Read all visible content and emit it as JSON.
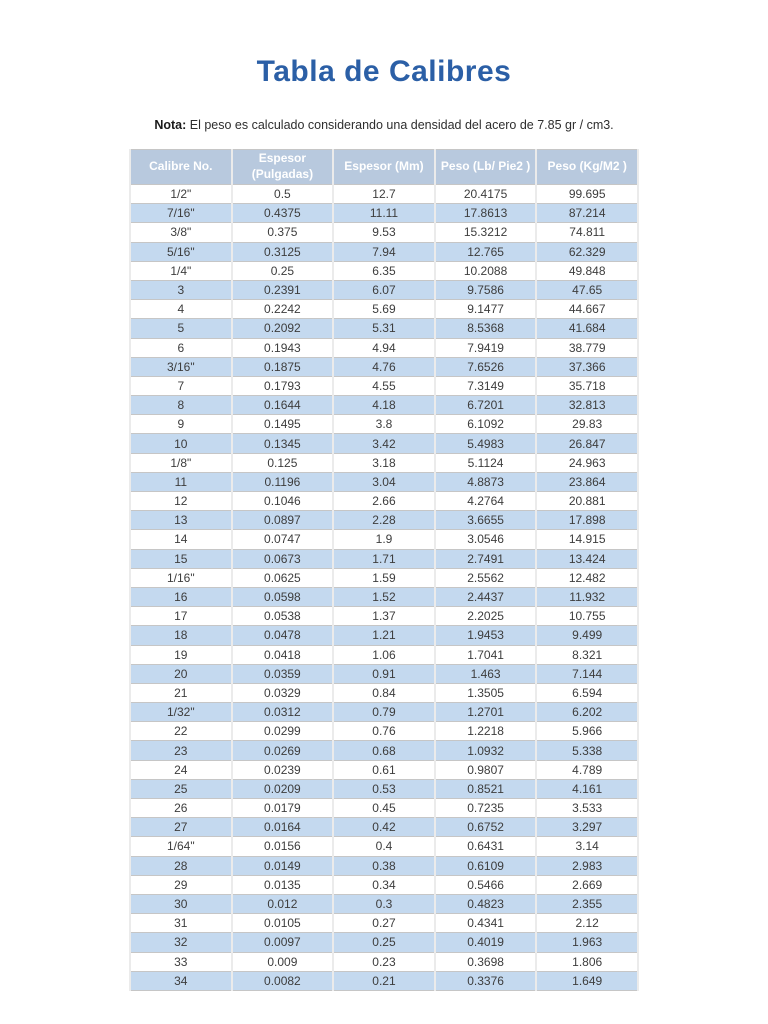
{
  "page": {
    "title": "Tabla de Calibres",
    "note": {
      "label": "Nota:",
      "text": "El peso es calculado considerando una densidad del acero de 7.85 gr / cm3."
    }
  },
  "colors": {
    "title": "#2b5fa6",
    "header_bg": "#b8c9de",
    "header_text": "#ffffff",
    "stripe_bg": "#c4d9ef",
    "body_text": "#3d3d3d"
  },
  "table": {
    "columns": [
      "Calibre No.",
      "Espesor (Pulgadas)",
      "Espesor (Mm)",
      "Peso (Lb/ Pie2 )",
      "Peso (Kg/M2 )"
    ],
    "column_keys": [
      "cell-calibre-no",
      "cell-espesor-pulgadas",
      "cell-espesor-mm",
      "cell-peso-lb-pie2",
      "cell-peso-kg-m2"
    ],
    "rows": [
      [
        "1/2\"",
        "0.5",
        "12.7",
        "20.4175",
        "99.695"
      ],
      [
        "7/16\"",
        "0.4375",
        "11.11",
        "17.8613",
        "87.214"
      ],
      [
        "3/8\"",
        "0.375",
        "9.53",
        "15.3212",
        "74.811"
      ],
      [
        "5/16\"",
        "0.3125",
        "7.94",
        "12.765",
        "62.329"
      ],
      [
        "1/4\"",
        "0.25",
        "6.35",
        "10.2088",
        "49.848"
      ],
      [
        "3",
        "0.2391",
        "6.07",
        "9.7586",
        "47.65"
      ],
      [
        "4",
        "0.2242",
        "5.69",
        "9.1477",
        "44.667"
      ],
      [
        "5",
        "0.2092",
        "5.31",
        "8.5368",
        "41.684"
      ],
      [
        "6",
        "0.1943",
        "4.94",
        "7.9419",
        "38.779"
      ],
      [
        "3/16\"",
        "0.1875",
        "4.76",
        "7.6526",
        "37.366"
      ],
      [
        "7",
        "0.1793",
        "4.55",
        "7.3149",
        "35.718"
      ],
      [
        "8",
        "0.1644",
        "4.18",
        "6.7201",
        "32.813"
      ],
      [
        "9",
        "0.1495",
        "3.8",
        "6.1092",
        "29.83"
      ],
      [
        "10",
        "0.1345",
        "3.42",
        "5.4983",
        "26.847"
      ],
      [
        "1/8\"",
        "0.125",
        "3.18",
        "5.1124",
        "24.963"
      ],
      [
        "11",
        "0.1196",
        "3.04",
        "4.8873",
        "23.864"
      ],
      [
        "12",
        "0.1046",
        "2.66",
        "4.2764",
        "20.881"
      ],
      [
        "13",
        "0.0897",
        "2.28",
        "3.6655",
        "17.898"
      ],
      [
        "14",
        "0.0747",
        "1.9",
        "3.0546",
        "14.915"
      ],
      [
        "15",
        "0.0673",
        "1.71",
        "2.7491",
        "13.424"
      ],
      [
        "1/16\"",
        "0.0625",
        "1.59",
        "2.5562",
        "12.482"
      ],
      [
        "16",
        "0.0598",
        "1.52",
        "2.4437",
        "11.932"
      ],
      [
        "17",
        "0.0538",
        "1.37",
        "2.2025",
        "10.755"
      ],
      [
        "18",
        "0.0478",
        "1.21",
        "1.9453",
        "9.499"
      ],
      [
        "19",
        "0.0418",
        "1.06",
        "1.7041",
        "8.321"
      ],
      [
        "20",
        "0.0359",
        "0.91",
        "1.463",
        "7.144"
      ],
      [
        "21",
        "0.0329",
        "0.84",
        "1.3505",
        "6.594"
      ],
      [
        "1/32\"",
        "0.0312",
        "0.79",
        "1.2701",
        "6.202"
      ],
      [
        "22",
        "0.0299",
        "0.76",
        "1.2218",
        "5.966"
      ],
      [
        "23",
        "0.0269",
        "0.68",
        "1.0932",
        "5.338"
      ],
      [
        "24",
        "0.0239",
        "0.61",
        "0.9807",
        "4.789"
      ],
      [
        "25",
        "0.0209",
        "0.53",
        "0.8521",
        "4.161"
      ],
      [
        "26",
        "0.0179",
        "0.45",
        "0.7235",
        "3.533"
      ],
      [
        "27",
        "0.0164",
        "0.42",
        "0.6752",
        "3.297"
      ],
      [
        "1/64\"",
        "0.0156",
        "0.4",
        "0.6431",
        "3.14"
      ],
      [
        "28",
        "0.0149",
        "0.38",
        "0.6109",
        "2.983"
      ],
      [
        "29",
        "0.0135",
        "0.34",
        "0.5466",
        "2.669"
      ],
      [
        "30",
        "0.012",
        "0.3",
        "0.4823",
        "2.355"
      ],
      [
        "31",
        "0.0105",
        "0.27",
        "0.4341",
        "2.12"
      ],
      [
        "32",
        "0.0097",
        "0.25",
        "0.4019",
        "1.963"
      ],
      [
        "33",
        "0.009",
        "0.23",
        "0.3698",
        "1.806"
      ],
      [
        "34",
        "0.0082",
        "0.21",
        "0.3376",
        "1.649"
      ]
    ]
  }
}
